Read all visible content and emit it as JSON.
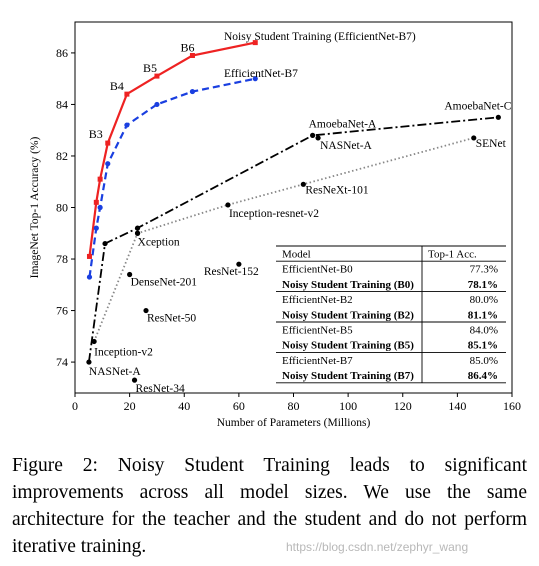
{
  "figure": {
    "caption": "Figure 2: Noisy Student Training leads to significant improvements across all model sizes. We use the same architecture for the teacher and the student and do not perform iterative training.",
    "watermark": "https://blog.csdn.net/zephyr_wang"
  },
  "chart_data": {
    "type": "line",
    "xlabel": "Number of Parameters (Millions)",
    "ylabel": "ImageNet Top-1 Accuracy (%)",
    "xlim": [
      0,
      160
    ],
    "ylim": [
      72.8,
      87.2
    ],
    "xticks": [
      0,
      20,
      40,
      60,
      80,
      100,
      120,
      140,
      160
    ],
    "yticks": [
      74,
      76,
      78,
      80,
      82,
      84,
      86
    ],
    "grid": false,
    "colors": {
      "noisy": "#ee2222",
      "efficientnet": "#1a3fe0",
      "amoeba": "#000000",
      "resnext": "#888888",
      "points": "#000000"
    },
    "series": [
      {
        "name": "Noisy Student Training (EfficientNet-B7)",
        "style": "solid-red-squares",
        "points": [
          {
            "x": 5.3,
            "y": 78.1
          },
          {
            "x": 7.8,
            "y": 80.2
          },
          {
            "x": 9.2,
            "y": 81.1
          },
          {
            "x": 12,
            "y": 82.5
          },
          {
            "x": 19,
            "y": 84.4
          },
          {
            "x": 30,
            "y": 85.1
          },
          {
            "x": 43,
            "y": 85.9
          },
          {
            "x": 66,
            "y": 86.4
          }
        ],
        "point_labels": [
          {
            "i": 3,
            "text": "B3"
          },
          {
            "i": 4,
            "text": "B4"
          },
          {
            "i": 5,
            "text": "B5"
          },
          {
            "i": 6,
            "text": "B6"
          }
        ]
      },
      {
        "name": "EfficientNet-B7",
        "style": "dashed-blue-circles",
        "points": [
          {
            "x": 5.3,
            "y": 77.3
          },
          {
            "x": 7.8,
            "y": 79.2
          },
          {
            "x": 9.2,
            "y": 80.0
          },
          {
            "x": 12,
            "y": 81.7
          },
          {
            "x": 19,
            "y": 83.2
          },
          {
            "x": 30,
            "y": 84.0
          },
          {
            "x": 43,
            "y": 84.5
          },
          {
            "x": 66,
            "y": 85.0
          }
        ]
      },
      {
        "name": "AmoebaNet",
        "style": "dashdot-black",
        "points": [
          {
            "x": 5.1,
            "y": 74.0
          },
          {
            "x": 11,
            "y": 78.6
          },
          {
            "x": 22.9,
            "y": 79.2
          },
          {
            "x": 87,
            "y": 82.8
          },
          {
            "x": 155,
            "y": 83.5
          }
        ],
        "point_labels": [
          {
            "i": 0,
            "text": "NASNet-A"
          },
          {
            "i": 3,
            "text": "AmoebaNet-A"
          },
          {
            "i": 4,
            "text": "AmoebaNet-C"
          }
        ]
      },
      {
        "name": "ResNeXt / Inception",
        "style": "dotted-gray",
        "points": [
          {
            "x": 7,
            "y": 74.8
          },
          {
            "x": 22.9,
            "y": 79.0
          },
          {
            "x": 56,
            "y": 80.1
          },
          {
            "x": 83.6,
            "y": 80.9
          },
          {
            "x": 146,
            "y": 82.7
          }
        ],
        "point_labels": [
          {
            "i": 0,
            "text": "Inception-v2"
          },
          {
            "i": 2,
            "text": "Inception-resnet-v2"
          },
          {
            "i": 3,
            "text": "ResNeXt-101"
          },
          {
            "i": 4,
            "text": "SENet"
          }
        ]
      }
    ],
    "points": [
      {
        "label": "Xception",
        "x": 22.9,
        "y": 79.0
      },
      {
        "label": "NASNet-A",
        "x": 89,
        "y": 82.7
      },
      {
        "label": "DenseNet-201",
        "x": 20,
        "y": 77.4
      },
      {
        "label": "ResNet-152",
        "x": 60,
        "y": 77.8
      },
      {
        "label": "ResNet-50",
        "x": 26,
        "y": 76.0
      },
      {
        "label": "ResNet-34",
        "x": 21.8,
        "y": 73.3
      }
    ],
    "series_labels": [
      {
        "text": "Noisy Student Training (EfficientNet-B7)"
      },
      {
        "text": "EfficientNet-B7"
      }
    ],
    "table": {
      "headers": [
        "Model",
        "Top-1 Acc."
      ],
      "rows": [
        {
          "model": "EfficientNet-B0",
          "acc": "77.3%",
          "bold": false
        },
        {
          "model": "Noisy Student Training (B0)",
          "acc": "78.1%",
          "bold": true
        },
        {
          "model": "EfficientNet-B2",
          "acc": "80.0%",
          "bold": false
        },
        {
          "model": "Noisy Student Training (B2)",
          "acc": "81.1%",
          "bold": true
        },
        {
          "model": "EfficientNet-B5",
          "acc": "84.0%",
          "bold": false
        },
        {
          "model": "Noisy Student Training (B5)",
          "acc": "85.1%",
          "bold": true
        },
        {
          "model": "EfficientNet-B7",
          "acc": "85.0%",
          "bold": false
        },
        {
          "model": "Noisy Student Training (B7)",
          "acc": "86.4%",
          "bold": true
        }
      ]
    }
  }
}
